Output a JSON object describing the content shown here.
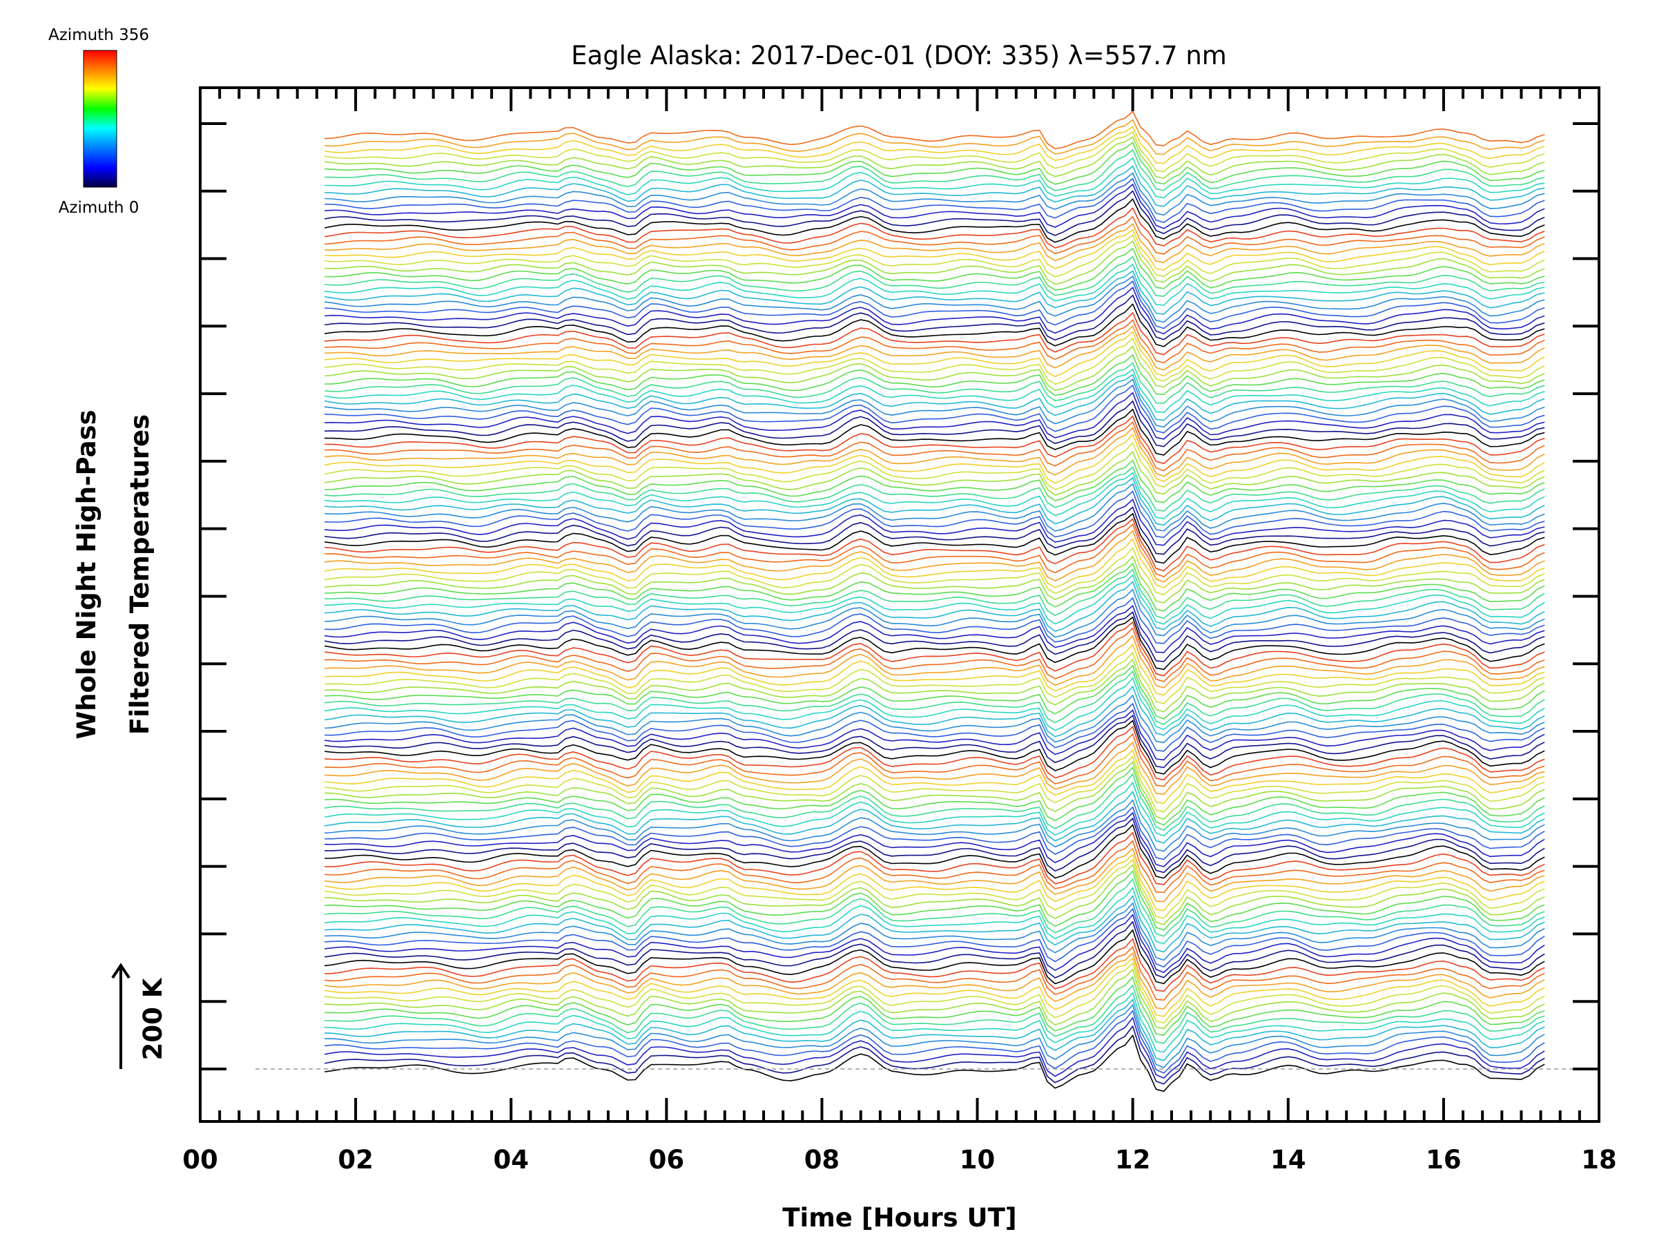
{
  "chart_data": {
    "type": "line",
    "title": "Eagle Alaska: 2017-Dec-01 (DOY: 335) λ=557.7 nm",
    "xlabel": "Time [Hours UT]",
    "ylabel_line1": "Whole Night High-Pass",
    "ylabel_line2": "Filtered Temperatures",
    "scale_bar_label": "200 K",
    "xlim": [
      0,
      18
    ],
    "x_ticks": [
      "00",
      "02",
      "04",
      "06",
      "08",
      "10",
      "12",
      "14",
      "16",
      "18"
    ],
    "x_tick_values": [
      0,
      2,
      4,
      6,
      8,
      10,
      12,
      14,
      16,
      18
    ],
    "data_x_range": [
      1.6,
      17.3
    ],
    "colorbar": {
      "top_label": "Azimuth 356",
      "bottom_label": "Azimuth 0",
      "colors": [
        "#ff0000",
        "#ff8000",
        "#ffff00",
        "#00ff00",
        "#00ffff",
        "#0080ff",
        "#0000ff",
        "#000040"
      ]
    },
    "series_count": 134,
    "series_offset_K": 8,
    "series_colors_cycle": [
      "#000000",
      "#11118a",
      "#1f1fc4",
      "#2f5fe0",
      "#2a8ad8",
      "#22b7d6",
      "#28d6c0",
      "#3cdc8e",
      "#5cdc50",
      "#9ce03a",
      "#cfe03a",
      "#f0d02a",
      "#f5a020",
      "#f06a1a",
      "#e8401e"
    ],
    "profile_key_points": [
      [
        1.6,
        0
      ],
      [
        2.5,
        1
      ],
      [
        3.0,
        2
      ],
      [
        3.6,
        -4
      ],
      [
        4.2,
        5
      ],
      [
        4.6,
        3
      ],
      [
        4.75,
        12
      ],
      [
        5.2,
        0
      ],
      [
        5.55,
        -12
      ],
      [
        5.8,
        8
      ],
      [
        6.3,
        2
      ],
      [
        6.75,
        8
      ],
      [
        7.0,
        -2
      ],
      [
        7.6,
        -10
      ],
      [
        8.0,
        -6
      ],
      [
        8.5,
        16
      ],
      [
        8.9,
        -5
      ],
      [
        9.4,
        -4
      ],
      [
        9.9,
        0
      ],
      [
        10.5,
        -4
      ],
      [
        10.8,
        6
      ],
      [
        10.95,
        -22
      ],
      [
        11.4,
        -5
      ],
      [
        11.9,
        30
      ],
      [
        12.0,
        40
      ],
      [
        12.15,
        0
      ],
      [
        12.35,
        -30
      ],
      [
        12.55,
        -15
      ],
      [
        12.7,
        5
      ],
      [
        13.0,
        -15
      ],
      [
        13.3,
        -5
      ],
      [
        14.0,
        4
      ],
      [
        14.5,
        -6
      ],
      [
        15.0,
        -4
      ],
      [
        15.5,
        5
      ],
      [
        16.0,
        12
      ],
      [
        16.3,
        5
      ],
      [
        16.6,
        -14
      ],
      [
        17.0,
        -12
      ],
      [
        17.3,
        5
      ]
    ]
  }
}
